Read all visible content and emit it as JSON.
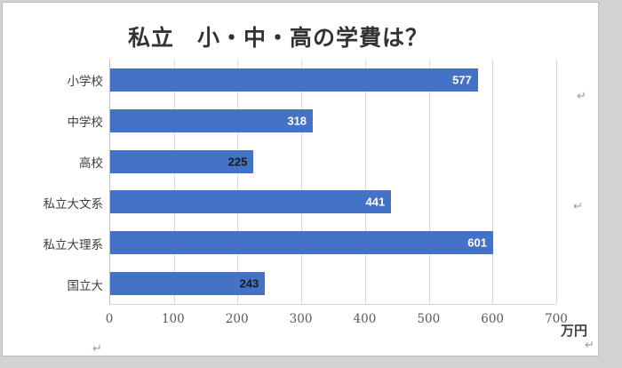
{
  "chart_data": {
    "type": "bar",
    "orientation": "horizontal",
    "title": "私立　小・中・高の学費は？",
    "categories": [
      "小学校",
      "中学校",
      "高校",
      "私立大文系",
      "私立大理系",
      "国立大"
    ],
    "values": [
      577,
      318,
      225,
      441,
      601,
      243
    ],
    "value_label_colors": [
      "#ffffff",
      "#ffffff",
      "#1a1a1a",
      "#ffffff",
      "#ffffff",
      "#1a1a1a"
    ],
    "xlim": [
      0,
      700
    ],
    "xticks": [
      0,
      100,
      200,
      300,
      400,
      500,
      600,
      700
    ],
    "unit_label": "万円",
    "bar_color": "#4472C4",
    "gridline_color": "#d9d9d9",
    "legend_visible": false,
    "grid": "vertical-only"
  },
  "editing_marks": {
    "return_glyph": "↵"
  }
}
